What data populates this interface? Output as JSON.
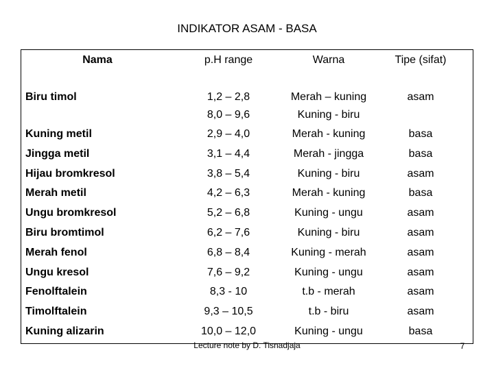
{
  "title": "INDIKATOR ASAM - BASA",
  "table": {
    "headers": [
      "Nama",
      "p.H range",
      "Warna",
      "Tipe (sifat)"
    ],
    "rows": [
      [
        "Biru timol",
        [
          "1,2 – 2,8",
          "8,0 – 9,6"
        ],
        [
          "Merah – kuning",
          "Kuning - biru"
        ],
        "asam"
      ],
      [
        "Kuning metil",
        "2,9 – 4,0",
        "Merah - kuning",
        "basa"
      ],
      [
        "Jingga metil",
        "3,1 – 4,4",
        "Merah - jingga",
        "basa"
      ],
      [
        "Hijau bromkresol",
        "3,8 – 5,4",
        "Kuning - biru",
        "asam"
      ],
      [
        "Merah metil",
        "4,2 – 6,3",
        "Merah - kuning",
        "basa"
      ],
      [
        "Ungu bromkresol",
        "5,2 – 6,8",
        "Kuning - ungu",
        "asam"
      ],
      [
        "Biru bromtimol",
        "6,2 – 7,6",
        "Kuning - biru",
        "asam"
      ],
      [
        "Merah fenol",
        "6,8 – 8,4",
        "Kuning - merah",
        "asam"
      ],
      [
        "Ungu kresol",
        "7,6 – 9,2",
        "Kuning - ungu",
        "asam"
      ],
      [
        "Fenolftalein",
        "8,3 - 10",
        "t.b - merah",
        "asam"
      ],
      [
        "Timolftalein",
        "9,3 – 10,5",
        "t.b - biru",
        "asam"
      ],
      [
        "Kuning alizarin",
        "10,0 – 12,0",
        "Kuning - ungu",
        "basa"
      ]
    ]
  },
  "footer": {
    "note": "Lecture note by D. Tisnadjaja",
    "page": "7"
  }
}
